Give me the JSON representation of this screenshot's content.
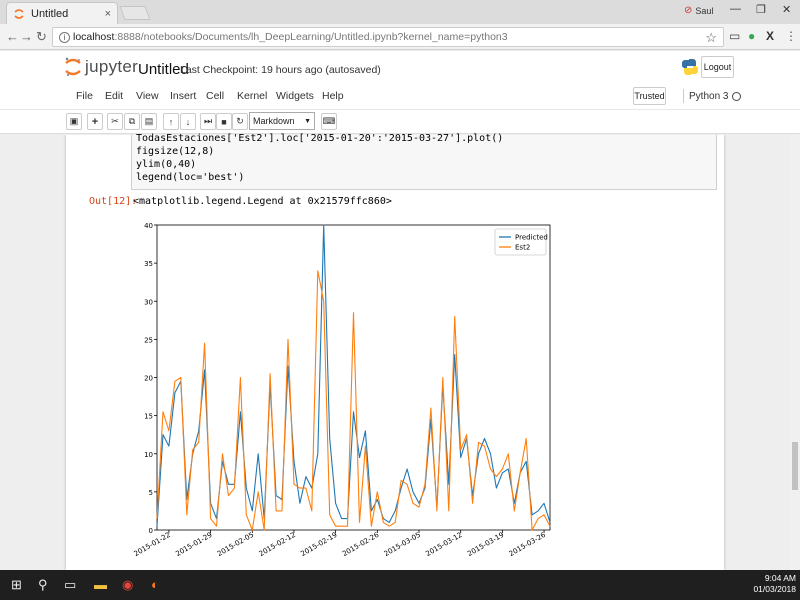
{
  "browser": {
    "tab_title": "Untitled",
    "tab_close": "×",
    "url_host": "localhost",
    "url_path": ":8888/notebooks/Documents/lh_DeepLearning/Untitled.ipynb?kernel_name=python3",
    "profile_name": "Saul",
    "info_icon": "i",
    "star_icon": "☆",
    "ext_icons": [
      "cast-icon",
      "maps-icon",
      "extension-icon"
    ]
  },
  "notebook": {
    "logo_text": "jupyter",
    "title": "Untitled",
    "checkpoint": "Last Checkpoint: 19 hours ago (autosaved)",
    "logout_label": "Logout",
    "menu": [
      "File",
      "Edit",
      "View",
      "Insert",
      "Cell",
      "Kernel",
      "Widgets",
      "Help"
    ],
    "trusted_label": "Trusted",
    "kernel_name": "Python 3",
    "cell_type": "Markdown",
    "code_lines": [
      "TodasEstaciones['Est2'].loc['2015-01-20':'2015-03-27'].plot()",
      "figsize(12,8)",
      "ylim(0,40)",
      "legend(loc='best')"
    ],
    "out_prompt": "Out[12]:",
    "out_text": "<matplotlib.legend.Legend at 0x21579ffc860>"
  },
  "taskbar": {
    "time": "9:04 AM",
    "date": "01/03/2018"
  },
  "chart_data": {
    "type": "line",
    "x_start": "2015-01-20",
    "x_end": "2015-03-27",
    "x_ticks": [
      "2015-01-22",
      "2015-01-29",
      "2015-02-05",
      "2015-02-12",
      "2015-02-19",
      "2015-02-26",
      "2015-03-05",
      "2015-03-12",
      "2015-03-19",
      "2015-03-26"
    ],
    "ylim": [
      0,
      40
    ],
    "y_ticks": [
      0,
      5,
      10,
      15,
      20,
      25,
      30,
      35,
      40
    ],
    "legend_position": "top-right",
    "grid": false,
    "series": [
      {
        "name": "Predicted",
        "color": "#1f77b4",
        "values": [
          0.5,
          12.5,
          11,
          18,
          19.5,
          4,
          10,
          13,
          21,
          3.5,
          1.5,
          9,
          6,
          6,
          15.5,
          5.5,
          2.5,
          10,
          1.5,
          19,
          4.5,
          4,
          21.5,
          9,
          3.5,
          7,
          5.5,
          10,
          40,
          12,
          3.5,
          1.5,
          1.5,
          15.5,
          9.5,
          13,
          2.5,
          4,
          1.5,
          1,
          2.5,
          5.5,
          8,
          5,
          3.5,
          5.5,
          14.5,
          3,
          19,
          6,
          23,
          9.5,
          12,
          4.5,
          10,
          12,
          10,
          5.5,
          7.5,
          8,
          3.5,
          7.5,
          9,
          2,
          2.5,
          3.5,
          1
        ]
      },
      {
        "name": "Est2",
        "color": "#ff7f0e",
        "values": [
          1.5,
          15.5,
          13,
          19.5,
          20,
          2,
          10.5,
          11.5,
          24.5,
          1.5,
          0.5,
          10,
          4.5,
          5.5,
          20,
          2,
          0,
          5,
          0,
          20.5,
          2.5,
          2.5,
          25,
          6,
          5.5,
          5.5,
          2.5,
          34,
          30,
          2,
          0.5,
          0.5,
          0.5,
          28.5,
          1,
          11,
          0.5,
          5,
          1,
          0.5,
          1,
          6.5,
          6,
          3.5,
          3,
          6,
          16,
          2.5,
          20,
          2.5,
          28,
          10.5,
          12.5,
          3.5,
          11.5,
          11,
          8,
          7,
          8,
          10,
          2.5,
          7.5,
          12,
          0,
          1.5,
          2,
          0.5
        ]
      }
    ]
  }
}
